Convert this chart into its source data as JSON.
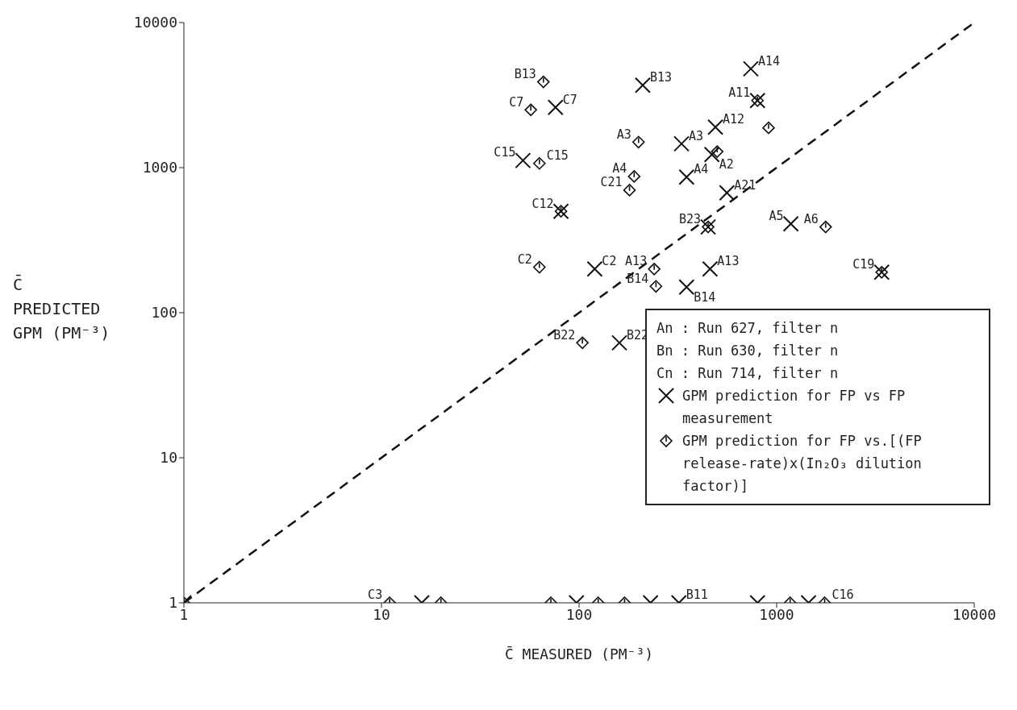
{
  "chart_data": {
    "type": "scatter",
    "xlabel": "C̄ MEASURED (PM⁻³)",
    "ylabel": "C̄ PREDICTED GPM (PM⁻³)",
    "xlim": [
      1,
      10000
    ],
    "ylim": [
      1,
      10000
    ],
    "xticks": [
      1,
      10,
      100,
      1000,
      10000
    ],
    "yticks": [
      1,
      10,
      100,
      1000,
      10000
    ],
    "log": "xy",
    "legend": "right",
    "series": [
      {
        "name": "GPM prediction for FP vs FP measurement",
        "marker": "cross",
        "color": "#111111",
        "x": [
          210,
          740,
          800,
          76,
          490,
          330,
          470,
          52,
          350,
          560,
          81,
          450,
          1180,
          120,
          460,
          350,
          3400,
          160,
          1,
          16,
          97,
          230,
          320,
          800,
          1450
        ],
        "values": [
          3700,
          4800,
          2900,
          2600,
          1900,
          1460,
          1230,
          1120,
          860,
          670,
          500,
          390,
          410,
          200,
          200,
          150,
          190,
          62,
          1,
          1,
          1,
          1,
          1,
          1,
          1
        ]
      },
      {
        "name": "GPM prediction for FP vs.[(FP release-rate)x(In₂O₃ dilution factor)]",
        "marker": "diamond",
        "color": "#111111",
        "x": [
          66,
          800,
          57,
          910,
          200,
          500,
          63,
          190,
          180,
          81,
          450,
          1770,
          63,
          240,
          245,
          3400,
          104,
          1,
          11,
          20,
          72,
          125,
          170,
          1170,
          1750
        ],
        "values": [
          3900,
          2900,
          2500,
          1880,
          1500,
          1290,
          1070,
          870,
          700,
          500,
          390,
          390,
          206,
          200,
          152,
          190,
          62,
          1,
          1,
          1,
          1,
          1,
          1,
          1,
          1
        ]
      },
      {
        "type": "line",
        "line_style": "dashed",
        "color": "#111111",
        "x": [
          1,
          10000
        ],
        "values": [
          1,
          10000
        ]
      }
    ],
    "annotations": [
      "An : Run 627, filter n",
      "Bn : Run 630, filter n",
      "Cn : Run 714, filter n",
      {
        "text": "B13",
        "x": 210,
        "y": 3700
      },
      {
        "text": "B13",
        "x": 66,
        "y": 3900
      },
      {
        "text": "A14",
        "x": 740,
        "y": 4800
      },
      {
        "text": "A11",
        "x": 800,
        "y": 2900
      },
      {
        "text": "C7",
        "x": 76,
        "y": 2600
      },
      {
        "text": "C7",
        "x": 57,
        "y": 2500
      },
      {
        "text": "A12",
        "x": 490,
        "y": 1900
      },
      {
        "text": "A3",
        "x": 330,
        "y": 1460
      },
      {
        "text": "A3",
        "x": 200,
        "y": 1500
      },
      {
        "text": "A2",
        "x": 470,
        "y": 1230
      },
      {
        "text": "C15",
        "x": 52,
        "y": 1120
      },
      {
        "text": "C15",
        "x": 63,
        "y": 1070
      },
      {
        "text": "A4",
        "x": 350,
        "y": 860
      },
      {
        "text": "A4",
        "x": 190,
        "y": 870
      },
      {
        "text": "A21",
        "x": 560,
        "y": 670
      },
      {
        "text": "C21",
        "x": 180,
        "y": 700
      },
      {
        "text": "C12",
        "x": 81,
        "y": 500
      },
      {
        "text": "B23",
        "x": 450,
        "y": 390
      },
      {
        "text": "A6",
        "x": 1770,
        "y": 390
      },
      {
        "text": "A5",
        "x": 1180,
        "y": 410
      },
      {
        "text": "C2",
        "x": 120,
        "y": 200
      },
      {
        "text": "C2",
        "x": 63,
        "y": 206
      },
      {
        "text": "A13",
        "x": 460,
        "y": 200
      },
      {
        "text": "A13",
        "x": 240,
        "y": 200
      },
      {
        "text": "B14",
        "x": 350,
        "y": 150
      },
      {
        "text": "B14",
        "x": 245,
        "y": 152
      },
      {
        "text": "C19",
        "x": 3400,
        "y": 190
      },
      {
        "text": "B22",
        "x": 160,
        "y": 62
      },
      {
        "text": "B22",
        "x": 104,
        "y": 62
      },
      {
        "text": "C3",
        "x": 11,
        "y": 1
      },
      {
        "text": "B11",
        "x": 320,
        "y": 1
      },
      {
        "text": "C16",
        "x": 1750,
        "y": 1
      }
    ]
  }
}
